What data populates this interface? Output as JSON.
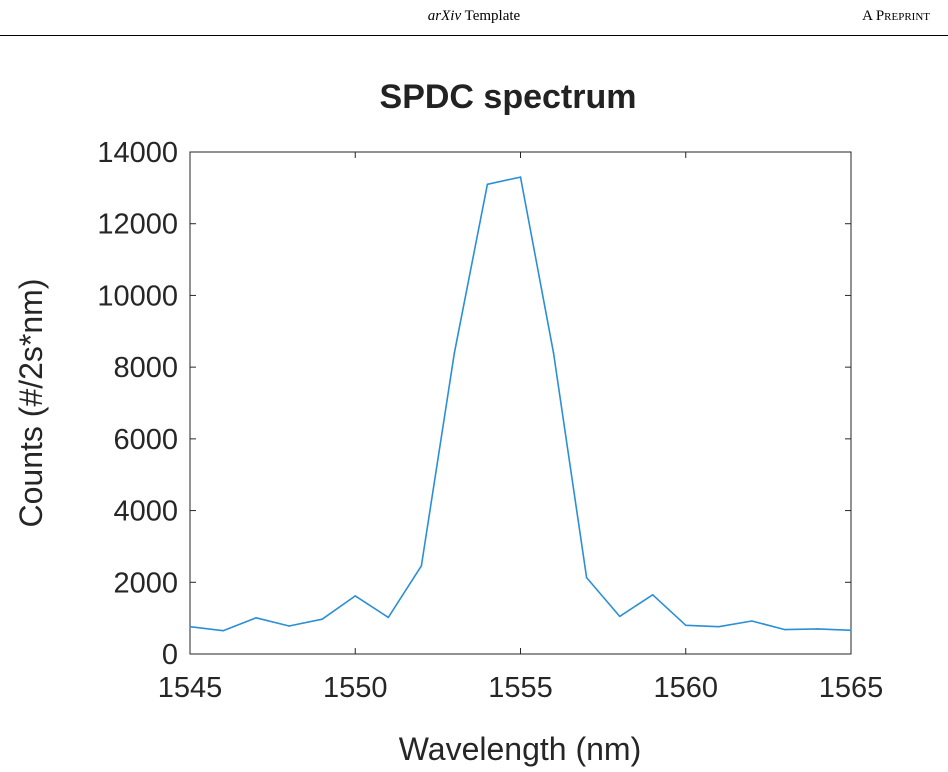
{
  "header": {
    "center_italic": "arXiv",
    "center_rest": " Template",
    "right": "A Preprint"
  },
  "chart_data": {
    "type": "line",
    "title": "SPDC spectrum",
    "xlabel": "Wavelength (nm)",
    "ylabel": "Counts (#/2s*nm)",
    "xlim": [
      1545,
      1565
    ],
    "ylim": [
      0,
      14000
    ],
    "xticks": [
      1545,
      1550,
      1555,
      1560,
      1565
    ],
    "yticks": [
      0,
      2000,
      4000,
      6000,
      8000,
      10000,
      12000,
      14000
    ],
    "grid": false,
    "line_color": "#2b8fd6",
    "series": [
      {
        "x": [
          1545,
          1546,
          1547,
          1548,
          1549,
          1550,
          1551,
          1552,
          1553,
          1554,
          1555,
          1556,
          1557,
          1558,
          1559,
          1560,
          1561,
          1562,
          1563,
          1564,
          1565
        ],
        "values": [
          760,
          650,
          1010,
          780,
          970,
          1620,
          1020,
          2460,
          8400,
          13100,
          13300,
          8400,
          2130,
          1050,
          1650,
          800,
          760,
          920,
          680,
          700,
          660
        ]
      }
    ]
  }
}
